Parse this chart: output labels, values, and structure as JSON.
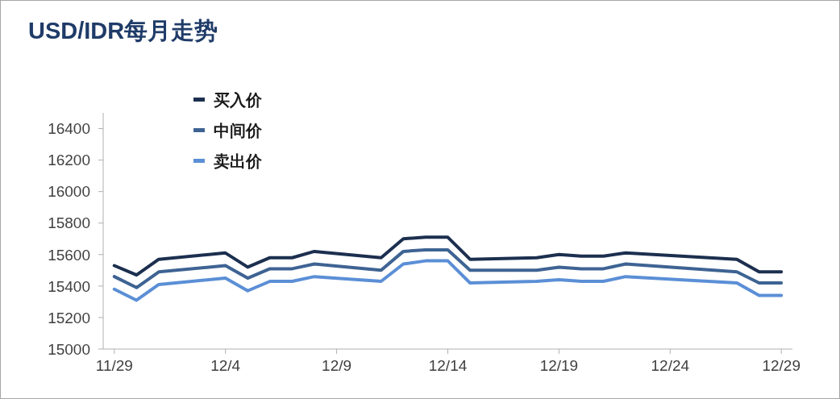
{
  "chart_data": {
    "type": "line",
    "title": "USD/IDR每月走势",
    "x": [
      "--11-29",
      "--11-30",
      "--12-01",
      "--12-04",
      "--12-05",
      "--12-06",
      "--12-07",
      "--12-08",
      "--12-11",
      "--12-12",
      "--12-13",
      "--12-14",
      "--12-15",
      "--12-18",
      "--12-19",
      "--12-20",
      "--12-21",
      "--12-22",
      "--12-27",
      "--12-28",
      "--12-29"
    ],
    "series": [
      {
        "name": "买入价",
        "color": "#1c2f4f",
        "values": [
          15530,
          15470,
          15570,
          15610,
          15520,
          15580,
          15580,
          15620,
          15580,
          15700,
          15710,
          15710,
          15570,
          15580,
          15600,
          15590,
          15590,
          15610,
          15570,
          15490,
          15490
        ]
      },
      {
        "name": "中间价",
        "color": "#3e6393",
        "values": [
          15460,
          15390,
          15490,
          15530,
          15450,
          15510,
          15510,
          15540,
          15500,
          15620,
          15630,
          15630,
          15500,
          15500,
          15520,
          15510,
          15510,
          15540,
          15490,
          15420,
          15420
        ]
      },
      {
        "name": "卖出价",
        "color": "#5b8fd6",
        "values": [
          15380,
          15310,
          15410,
          15450,
          15370,
          15430,
          15430,
          15460,
          15430,
          15540,
          15560,
          15560,
          15420,
          15430,
          15440,
          15430,
          15430,
          15460,
          15420,
          15340,
          15340
        ]
      }
    ],
    "xlim": [
      "--11-28T12:00",
      "--12-29T12:00"
    ],
    "xticks": [
      {
        "value": "--11-29",
        "label": "11/29"
      },
      {
        "value": "--12-04",
        "label": "12/4"
      },
      {
        "value": "--12-09",
        "label": "12/9"
      },
      {
        "value": "--12-14",
        "label": "12/14"
      },
      {
        "value": "--12-19",
        "label": "12/19"
      },
      {
        "value": "--12-24",
        "label": "12/24"
      },
      {
        "value": "--12-29",
        "label": "12/29"
      }
    ],
    "ylim": [
      15000,
      16500
    ],
    "yticks": [
      15000,
      15200,
      15400,
      15600,
      15800,
      16000,
      16200,
      16400
    ],
    "legend": "top left"
  }
}
